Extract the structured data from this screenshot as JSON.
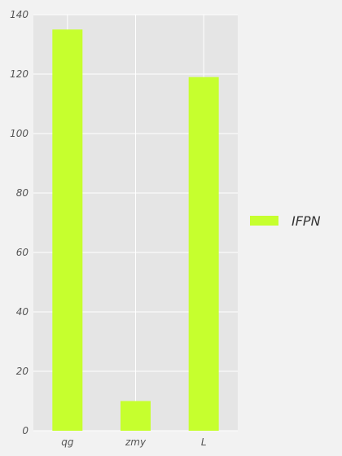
{
  "chart_data": {
    "type": "bar",
    "categories": [
      "qg",
      "zmy",
      "L"
    ],
    "series": [
      {
        "name": "IFPN",
        "values": [
          135,
          10,
          119
        ],
        "color": "#c6ff2e"
      }
    ],
    "ylim": [
      0,
      140
    ],
    "yticks": [
      0,
      20,
      40,
      60,
      80,
      100,
      120,
      140
    ],
    "grid": true,
    "legend_position": "right",
    "background_color": "#e5e5e5",
    "grid_color": "#ffffff"
  }
}
